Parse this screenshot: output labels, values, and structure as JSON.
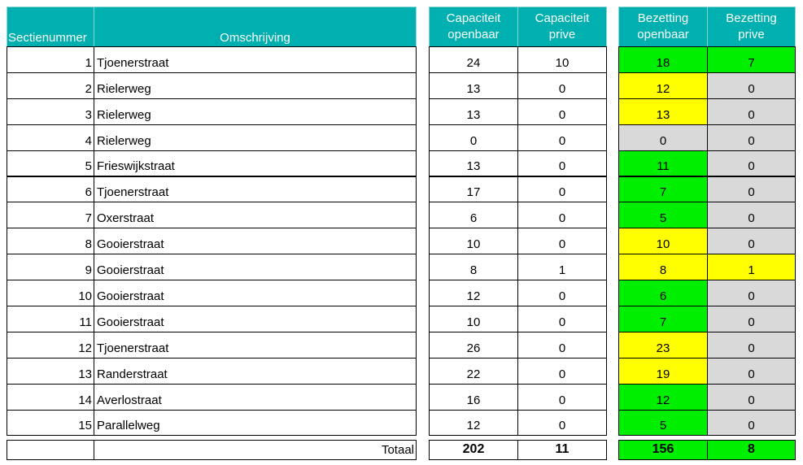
{
  "headers": {
    "section": "Sectienummer",
    "description": "Omschrijving",
    "cap_public": [
      "Capaciteit",
      "openbaar"
    ],
    "cap_private": [
      "Capaciteit",
      "prive"
    ],
    "occ_public": [
      "Bezetting",
      "openbaar"
    ],
    "occ_private": [
      "Bezetting",
      "prive"
    ]
  },
  "rows": [
    {
      "section": "1",
      "description": "Tjoenerstraat",
      "cap_public": "24",
      "cap_private": "10",
      "occ_public": "18",
      "occ_public_status": "green",
      "occ_private": "7",
      "occ_private_status": "green"
    },
    {
      "section": "2",
      "description": "Rielerweg",
      "cap_public": "13",
      "cap_private": "0",
      "occ_public": "12",
      "occ_public_status": "yellow",
      "occ_private": "0",
      "occ_private_status": "grey"
    },
    {
      "section": "3",
      "description": "Rielerweg",
      "cap_public": "13",
      "cap_private": "0",
      "occ_public": "13",
      "occ_public_status": "yellow",
      "occ_private": "0",
      "occ_private_status": "grey"
    },
    {
      "section": "4",
      "description": "Rielerweg",
      "cap_public": "0",
      "cap_private": "0",
      "occ_public": "0",
      "occ_public_status": "grey",
      "occ_private": "0",
      "occ_private_status": "grey"
    },
    {
      "section": "5",
      "description": "Frieswijkstraat",
      "cap_public": "13",
      "cap_private": "0",
      "occ_public": "11",
      "occ_public_status": "green",
      "occ_private": "0",
      "occ_private_status": "grey"
    },
    {
      "section": "6",
      "description": "Tjoenerstraat",
      "cap_public": "17",
      "cap_private": "0",
      "occ_public": "7",
      "occ_public_status": "green",
      "occ_private": "0",
      "occ_private_status": "grey"
    },
    {
      "section": "7",
      "description": "Oxerstraat",
      "cap_public": "6",
      "cap_private": "0",
      "occ_public": "5",
      "occ_public_status": "green",
      "occ_private": "0",
      "occ_private_status": "grey"
    },
    {
      "section": "8",
      "description": "Gooierstraat",
      "cap_public": "10",
      "cap_private": "0",
      "occ_public": "10",
      "occ_public_status": "yellow",
      "occ_private": "0",
      "occ_private_status": "grey"
    },
    {
      "section": "9",
      "description": "Gooierstraat",
      "cap_public": "8",
      "cap_private": "1",
      "occ_public": "8",
      "occ_public_status": "yellow",
      "occ_private": "1",
      "occ_private_status": "yellow"
    },
    {
      "section": "10",
      "description": "Gooierstraat",
      "cap_public": "12",
      "cap_private": "0",
      "occ_public": "6",
      "occ_public_status": "green",
      "occ_private": "0",
      "occ_private_status": "grey"
    },
    {
      "section": "11",
      "description": "Gooierstraat",
      "cap_public": "10",
      "cap_private": "0",
      "occ_public": "7",
      "occ_public_status": "green",
      "occ_private": "0",
      "occ_private_status": "grey"
    },
    {
      "section": "12",
      "description": "Tjoenerstraat",
      "cap_public": "26",
      "cap_private": "0",
      "occ_public": "23",
      "occ_public_status": "yellow",
      "occ_private": "0",
      "occ_private_status": "grey"
    },
    {
      "section": "13",
      "description": "Randerstraat",
      "cap_public": "22",
      "cap_private": "0",
      "occ_public": "19",
      "occ_public_status": "yellow",
      "occ_private": "0",
      "occ_private_status": "grey"
    },
    {
      "section": "14",
      "description": "Averlostraat",
      "cap_public": "16",
      "cap_private": "0",
      "occ_public": "12",
      "occ_public_status": "green",
      "occ_private": "0",
      "occ_private_status": "grey"
    },
    {
      "section": "15",
      "description": "Parallelweg",
      "cap_public": "12",
      "cap_private": "0",
      "occ_public": "5",
      "occ_public_status": "green",
      "occ_private": "0",
      "occ_private_status": "grey"
    }
  ],
  "totals": {
    "label": "Totaal",
    "cap_public": "202",
    "cap_private": "11",
    "occ_public": "156",
    "occ_public_status": "green",
    "occ_private": "8",
    "occ_private_status": "green"
  },
  "colors": {
    "header": "#00B0B0",
    "green": "#00EE00",
    "yellow": "#FFFF00",
    "grey": "#D9D9D9"
  }
}
